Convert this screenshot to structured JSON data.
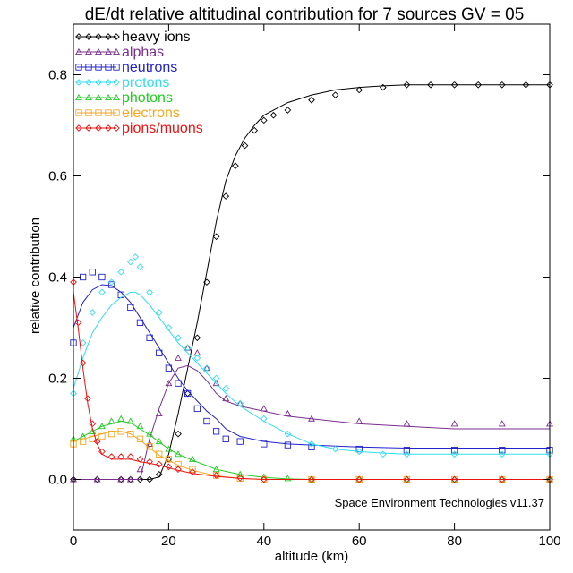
{
  "chart_data": {
    "type": "line",
    "title": "dE/dt relative altitudinal contribution for 7 sources GV = 05",
    "xlabel": "altitude (km)",
    "ylabel": "relative contribution",
    "xlim": [
      0,
      100
    ],
    "ylim": [
      -0.1,
      0.9
    ],
    "xticks": [
      0,
      20,
      40,
      60,
      80,
      100
    ],
    "xtick_labels": [
      "0",
      "20",
      "40",
      "60",
      "80",
      "100"
    ],
    "yticks": [
      0.0,
      0.2,
      0.4,
      0.6,
      0.8
    ],
    "ytick_labels": [
      "0.0",
      "0.2",
      "0.4",
      "0.6",
      "0.8"
    ],
    "grid": false,
    "legend_position": "top-left",
    "annotation": "Space Environment Technologies v11.37",
    "series": [
      {
        "name": "heavy ions",
        "color": "#000000",
        "marker": "diamond",
        "x": [
          0,
          5,
          10,
          12,
          14,
          16,
          18,
          20,
          22,
          24,
          26,
          28,
          30,
          32,
          34,
          36,
          38,
          40,
          42,
          45,
          50,
          55,
          60,
          65,
          70,
          75,
          80,
          85,
          90,
          95,
          100
        ],
        "values": [
          0.0,
          0.0,
          0.0,
          0.0,
          0.0,
          0.0,
          0.01,
          0.04,
          0.09,
          0.17,
          0.28,
          0.39,
          0.48,
          0.56,
          0.62,
          0.66,
          0.69,
          0.71,
          0.72,
          0.73,
          0.75,
          0.76,
          0.77,
          0.775,
          0.78,
          0.78,
          0.78,
          0.78,
          0.78,
          0.78,
          0.78
        ],
        "fit": [
          0.0,
          0.0,
          0.0,
          0.0,
          0.0,
          0.0,
          0.005,
          0.05,
          0.13,
          0.22,
          0.31,
          0.41,
          0.51,
          0.59,
          0.64,
          0.675,
          0.7,
          0.72,
          0.73,
          0.745,
          0.76,
          0.77,
          0.775,
          0.778,
          0.78,
          0.78,
          0.78,
          0.78,
          0.78,
          0.78,
          0.78
        ]
      },
      {
        "name": "alphas",
        "color": "#7b2e8f",
        "marker": "triangle",
        "x": [
          0,
          5,
          10,
          12,
          14,
          16,
          18,
          20,
          22,
          24,
          26,
          28,
          30,
          32,
          35,
          40,
          45,
          50,
          60,
          70,
          80,
          90,
          100
        ],
        "values": [
          0.0,
          0.0,
          0.0,
          0.0,
          0.02,
          0.07,
          0.13,
          0.19,
          0.24,
          0.26,
          0.25,
          0.22,
          0.19,
          0.16,
          0.15,
          0.14,
          0.13,
          0.12,
          0.115,
          0.11,
          0.11,
          0.11,
          0.11
        ],
        "fit": [
          0.0,
          0.0,
          0.0,
          0.0,
          0.0,
          0.08,
          0.14,
          0.19,
          0.22,
          0.225,
          0.215,
          0.195,
          0.17,
          0.155,
          0.145,
          0.135,
          0.125,
          0.12,
          0.11,
          0.105,
          0.1,
          0.1,
          0.1
        ]
      },
      {
        "name": "neutrons",
        "color": "#2222c8",
        "marker": "square",
        "x": [
          0,
          2,
          4,
          6,
          8,
          10,
          12,
          14,
          16,
          18,
          20,
          22,
          24,
          26,
          28,
          30,
          32,
          35,
          40,
          45,
          50,
          60,
          70,
          80,
          90,
          100
        ],
        "values": [
          0.27,
          0.4,
          0.41,
          0.4,
          0.385,
          0.365,
          0.34,
          0.31,
          0.28,
          0.25,
          0.22,
          0.19,
          0.17,
          0.14,
          0.115,
          0.095,
          0.08,
          0.075,
          0.07,
          0.068,
          0.064,
          0.06,
          0.058,
          0.058,
          0.058,
          0.058
        ],
        "fit": [
          0.3,
          0.35,
          0.375,
          0.385,
          0.383,
          0.37,
          0.35,
          0.32,
          0.29,
          0.26,
          0.23,
          0.2,
          0.175,
          0.155,
          0.135,
          0.12,
          0.1,
          0.085,
          0.075,
          0.07,
          0.068,
          0.064,
          0.062,
          0.062,
          0.062,
          0.062
        ]
      },
      {
        "name": "protons",
        "color": "#33ddee",
        "marker": "diamond",
        "x": [
          0,
          2,
          4,
          6,
          8,
          10,
          12,
          13,
          14,
          16,
          18,
          20,
          22,
          24,
          26,
          28,
          30,
          32,
          35,
          40,
          45,
          50,
          55,
          60,
          65,
          70,
          80,
          90,
          100
        ],
        "values": [
          0.17,
          0.27,
          0.33,
          0.37,
          0.39,
          0.41,
          0.43,
          0.44,
          0.42,
          0.37,
          0.33,
          0.3,
          0.28,
          0.26,
          0.24,
          0.22,
          0.2,
          0.18,
          0.15,
          0.12,
          0.09,
          0.07,
          0.06,
          0.055,
          0.05,
          0.05,
          0.05,
          0.05,
          0.05
        ],
        "fit": [
          0.18,
          0.24,
          0.29,
          0.32,
          0.345,
          0.36,
          0.37,
          0.37,
          0.365,
          0.345,
          0.32,
          0.295,
          0.27,
          0.25,
          0.23,
          0.21,
          0.19,
          0.17,
          0.145,
          0.115,
          0.09,
          0.07,
          0.06,
          0.055,
          0.052,
          0.05,
          0.05,
          0.05,
          0.05
        ]
      },
      {
        "name": "photons",
        "color": "#22cc22",
        "marker": "triangle",
        "x": [
          0,
          2,
          4,
          6,
          8,
          10,
          12,
          14,
          16,
          18,
          20,
          22,
          25,
          30,
          35,
          40,
          45,
          50,
          60,
          70,
          80,
          90,
          100
        ],
        "values": [
          0.08,
          0.085,
          0.095,
          0.105,
          0.115,
          0.12,
          0.115,
          0.105,
          0.09,
          0.075,
          0.06,
          0.05,
          0.04,
          0.02,
          0.01,
          0.005,
          0.002,
          0.0,
          0.0,
          0.0,
          0.0,
          0.0,
          0.0
        ],
        "fit": [
          0.075,
          0.085,
          0.095,
          0.105,
          0.11,
          0.115,
          0.112,
          0.1,
          0.088,
          0.074,
          0.06,
          0.05,
          0.038,
          0.02,
          0.01,
          0.004,
          0.001,
          0.0,
          0.0,
          0.0,
          0.0,
          0.0,
          0.0
        ]
      },
      {
        "name": "electrons",
        "color": "#f5a623",
        "marker": "square",
        "x": [
          0,
          2,
          4,
          6,
          8,
          10,
          12,
          14,
          16,
          18,
          20,
          22,
          25,
          30,
          35,
          40,
          50,
          60,
          70,
          80,
          90,
          100
        ],
        "values": [
          0.07,
          0.075,
          0.08,
          0.085,
          0.09,
          0.095,
          0.09,
          0.08,
          0.065,
          0.05,
          0.04,
          0.03,
          0.02,
          0.008,
          0.002,
          0.0,
          0.0,
          0.0,
          0.0,
          0.0,
          0.0,
          0.0
        ],
        "fit": [
          0.075,
          0.08,
          0.085,
          0.09,
          0.095,
          0.095,
          0.09,
          0.078,
          0.062,
          0.048,
          0.038,
          0.028,
          0.018,
          0.007,
          0.002,
          0.0,
          0.0,
          0.0,
          0.0,
          0.0,
          0.0,
          0.0
        ]
      },
      {
        "name": "pions/muons",
        "color": "#ee1111",
        "marker": "diamond",
        "x": [
          0,
          1,
          2,
          3,
          4,
          5,
          6,
          8,
          10,
          12,
          14,
          16,
          18,
          20,
          22,
          25,
          30,
          35,
          40,
          50,
          60,
          70,
          80,
          90,
          100
        ],
        "values": [
          0.39,
          0.31,
          0.23,
          0.16,
          0.11,
          0.075,
          0.055,
          0.045,
          0.045,
          0.045,
          0.04,
          0.035,
          0.03,
          0.025,
          0.02,
          0.015,
          0.008,
          0.003,
          0.0,
          0.0,
          0.0,
          0.0,
          0.0,
          0.0,
          0.0
        ],
        "fit": [
          0.37,
          0.3,
          0.22,
          0.15,
          0.1,
          0.07,
          0.05,
          0.04,
          0.04,
          0.04,
          0.035,
          0.032,
          0.028,
          0.023,
          0.018,
          0.012,
          0.006,
          0.002,
          0.0,
          0.0,
          0.0,
          0.0,
          0.0,
          0.0,
          0.0
        ]
      }
    ]
  }
}
